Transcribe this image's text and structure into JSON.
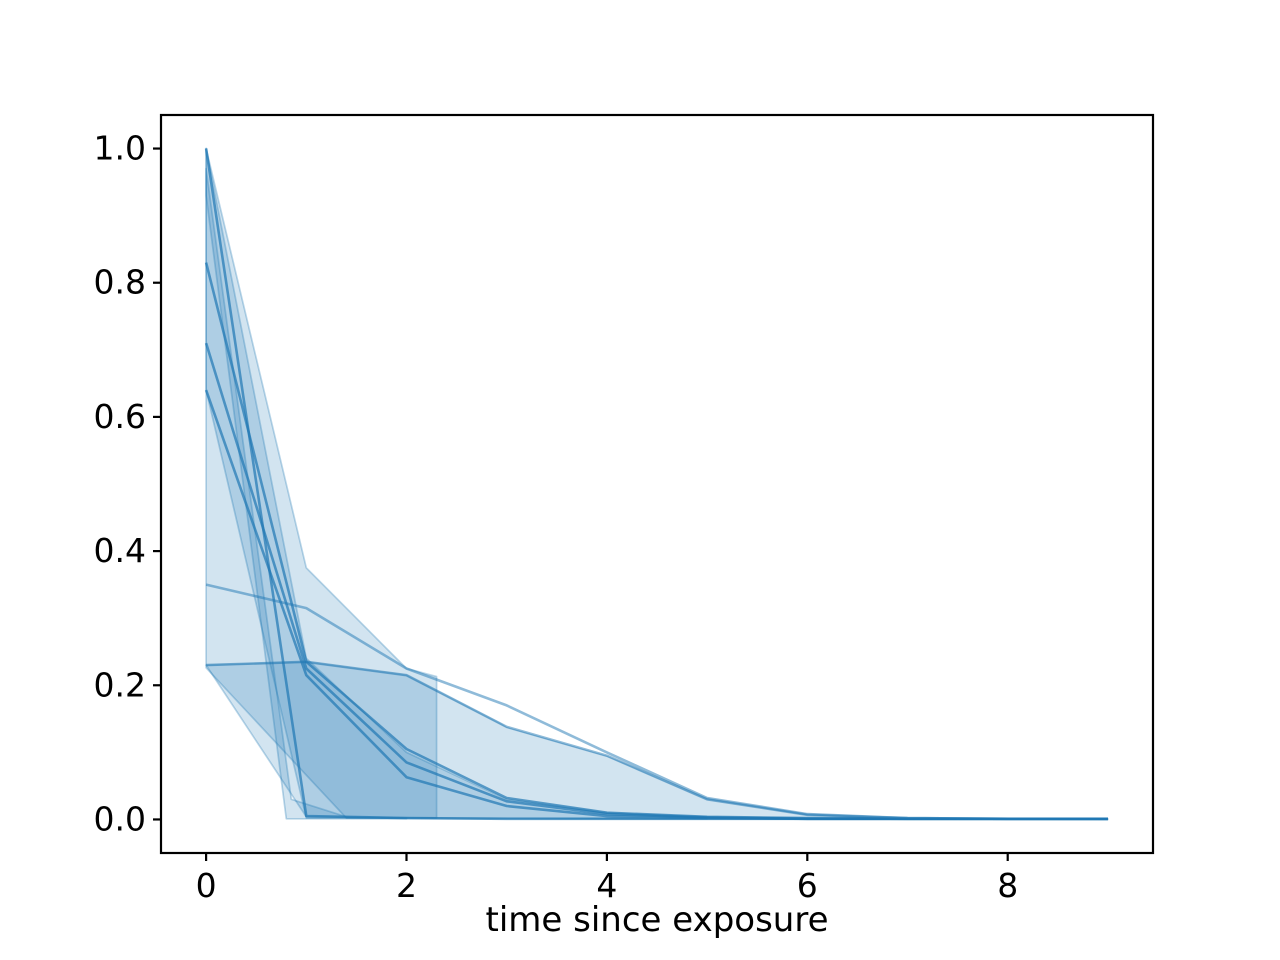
{
  "figure": {
    "background": "#ffffff",
    "title": ""
  },
  "chart_data": {
    "type": "line",
    "title": "",
    "xlabel": "time since exposure",
    "ylabel": "",
    "xlim": [
      -0.45,
      9.45
    ],
    "ylim": [
      -0.05,
      1.05
    ],
    "grid": false,
    "legend": "none",
    "x": [
      0,
      1,
      2,
      3,
      4,
      5,
      6,
      7,
      8,
      9
    ],
    "series": [
      {
        "name": "curve-1",
        "opacity": 0.7,
        "values": [
          1.0,
          0.005,
          0.002,
          0.001,
          0.001,
          0.001,
          0.001,
          0.001,
          0.001,
          0.001
        ]
      },
      {
        "name": "curve-2",
        "opacity": 0.7,
        "values": [
          0.83,
          0.235,
          0.105,
          0.032,
          0.01,
          0.004,
          0.002,
          0.001,
          0.001,
          0.001
        ]
      },
      {
        "name": "curve-3",
        "opacity": 0.7,
        "values": [
          0.71,
          0.225,
          0.085,
          0.027,
          0.008,
          0.003,
          0.001,
          0.001,
          0.001,
          0.001
        ]
      },
      {
        "name": "curve-4",
        "opacity": 0.7,
        "values": [
          0.64,
          0.215,
          0.063,
          0.02,
          0.005,
          0.002,
          0.001,
          0.001,
          0.001,
          0.001
        ]
      },
      {
        "name": "curve-5",
        "opacity": 0.5,
        "values": [
          0.35,
          0.315,
          0.225,
          0.17,
          0.1,
          0.032,
          0.008,
          0.002,
          0.001,
          0.001
        ]
      },
      {
        "name": "curve-6",
        "opacity": 0.5,
        "values": [
          0.23,
          0.235,
          0.215,
          0.138,
          0.095,
          0.03,
          0.007,
          0.002,
          0.001,
          0.001
        ]
      }
    ],
    "bands": [
      {
        "name": "band-1",
        "upper": [
          [
            0,
            1.0
          ],
          [
            1,
            0.375
          ],
          [
            2,
            0.225
          ],
          [
            2.3,
            0.213
          ]
        ],
        "lower": [
          [
            0,
            0.23
          ],
          [
            1,
            0.004
          ],
          [
            2.3,
            0.002
          ]
        ]
      },
      {
        "name": "band-2",
        "upper": [
          [
            0,
            1.0
          ],
          [
            1,
            0.24
          ],
          [
            2,
            0.1
          ],
          [
            3,
            0.03
          ],
          [
            4,
            0.01
          ],
          [
            5,
            0.003
          ]
        ],
        "lower": [
          [
            0,
            0.64
          ],
          [
            1,
            0.002
          ],
          [
            5,
            0.001
          ]
        ]
      },
      {
        "name": "band-3",
        "upper": [
          [
            0,
            0.97
          ],
          [
            0.85,
            0.03
          ],
          [
            1.4,
            0.004
          ],
          [
            2,
            0.002
          ]
        ],
        "lower": [
          [
            0,
            0.93
          ],
          [
            0.8,
            0.001
          ],
          [
            2,
            0.001
          ]
        ]
      },
      {
        "name": "band-4",
        "upper": [
          [
            0,
            0.23
          ],
          [
            1,
            0.235
          ],
          [
            2,
            0.215
          ],
          [
            3,
            0.138
          ],
          [
            4,
            0.095
          ],
          [
            5,
            0.03
          ],
          [
            6,
            0.007
          ],
          [
            7,
            0.002
          ],
          [
            8,
            0.001
          ],
          [
            9,
            0.001
          ]
        ],
        "lower": [
          [
            0,
            0.226
          ],
          [
            1.4,
            0.002
          ],
          [
            9,
            0.0
          ]
        ]
      }
    ],
    "white_gap": [
      [
        2.3,
        0.213
      ],
      [
        3,
        0.17
      ],
      [
        4,
        0.1
      ],
      [
        4.3,
        0.077
      ],
      [
        4,
        0.095
      ],
      [
        3,
        0.138
      ]
    ],
    "style": {
      "line_color": "#1f77b4",
      "fill_color": "#1f77b4",
      "fill_opacity": 0.2,
      "edge_opacity": 0.3,
      "spine_color": "#000000"
    },
    "axes": {
      "xticks": [
        {
          "v": 0,
          "label": "0"
        },
        {
          "v": 2,
          "label": "2"
        },
        {
          "v": 4,
          "label": "4"
        },
        {
          "v": 6,
          "label": "6"
        },
        {
          "v": 8,
          "label": "8"
        }
      ],
      "yticks": [
        {
          "v": 0.0,
          "label": "0.0"
        },
        {
          "v": 0.2,
          "label": "0.2"
        },
        {
          "v": 0.4,
          "label": "0.4"
        },
        {
          "v": 0.6,
          "label": "0.6"
        },
        {
          "v": 0.8,
          "label": "0.8"
        },
        {
          "v": 1.0,
          "label": "1.0"
        }
      ]
    }
  }
}
